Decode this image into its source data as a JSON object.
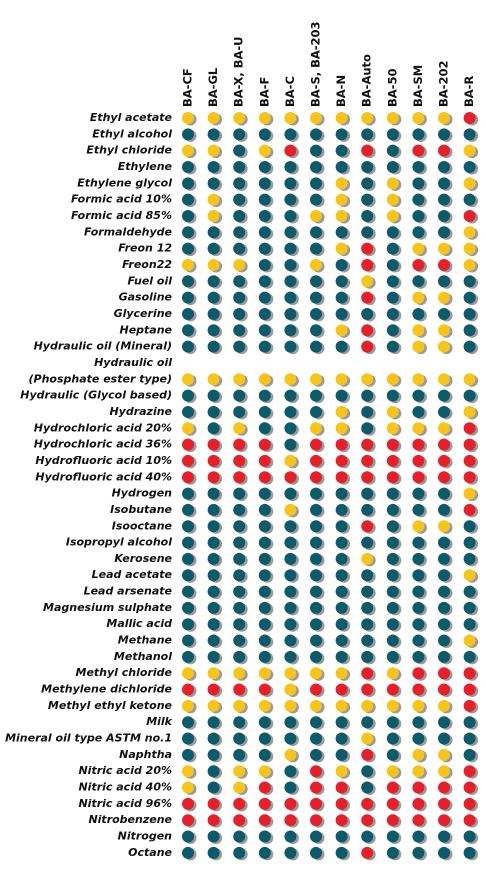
{
  "table": {
    "columns": [
      "BA-CF",
      "BA-GL",
      "BA-X, BA-U",
      "BA-F",
      "BA-C",
      "BA-S, BA-203",
      "BA-N",
      "BA-Auto",
      "BA-50",
      "BA-SM",
      "BA-202",
      "BA-R"
    ],
    "rows": [
      {
        "label": "Ethyl acetate",
        "cells": [
          "#f6c41a",
          "#f6c41a",
          "#f6c41a",
          "#f6c41a",
          "#f6c41a",
          "#f6c41a",
          "#f6c41a",
          "#f6c41a",
          "#f6c41a",
          "#f6c41a",
          "#f6c41a",
          "#e6202a"
        ]
      },
      {
        "label": "Ethyl alcohol",
        "cells": [
          "#0d5a6a",
          "#0d5a6a",
          "#0d5a6a",
          "#0d5a6a",
          "#0d5a6a",
          "#0d5a6a",
          "#0d5a6a",
          "#0d5a6a",
          "#0d5a6a",
          "#0d5a6a",
          "#0d5a6a",
          "#0d5a6a"
        ]
      },
      {
        "label": "Ethyl chloride",
        "cells": [
          "#f6c41a",
          "#f6c41a",
          "#0d5a6a",
          "#f6c41a",
          "#e6202a",
          "#0d5a6a",
          "#0d5a6a",
          "#e6202a",
          "#0d5a6a",
          "#e6202a",
          "#e6202a",
          "#f6c41a"
        ]
      },
      {
        "label": "Ethylene",
        "cells": [
          "#0d5a6a",
          "#0d5a6a",
          "#0d5a6a",
          "#0d5a6a",
          "#0d5a6a",
          "#0d5a6a",
          "#0d5a6a",
          "#0d5a6a",
          "#0d5a6a",
          "#0d5a6a",
          "#0d5a6a",
          "#0d5a6a"
        ]
      },
      {
        "label": "Ethylene glycol",
        "cells": [
          "#0d5a6a",
          "#0d5a6a",
          "#0d5a6a",
          "#0d5a6a",
          "#0d5a6a",
          "#0d5a6a",
          "#f6c41a",
          "#0d5a6a",
          "#f6c41a",
          "#0d5a6a",
          "#0d5a6a",
          "#f6c41a"
        ]
      },
      {
        "label": "Formic acid 10%",
        "cells": [
          "#0d5a6a",
          "#f6c41a",
          "#0d5a6a",
          "#0d5a6a",
          "#0d5a6a",
          "#0d5a6a",
          "#f6c41a",
          "#0d5a6a",
          "#f6c41a",
          "#0d5a6a",
          "#0d5a6a",
          "#0d5a6a"
        ]
      },
      {
        "label": "Formic acid 85%",
        "cells": [
          "#0d5a6a",
          "#f6c41a",
          "#0d5a6a",
          "#0d5a6a",
          "#0d5a6a",
          "#f6c41a",
          "#f6c41a",
          "#0d5a6a",
          "#f6c41a",
          "#0d5a6a",
          "#0d5a6a",
          "#e6202a"
        ]
      },
      {
        "label": "Formaldehyde",
        "cells": [
          "#0d5a6a",
          "#0d5a6a",
          "#0d5a6a",
          "#0d5a6a",
          "#0d5a6a",
          "#0d5a6a",
          "#0d5a6a",
          "#0d5a6a",
          "#0d5a6a",
          "#0d5a6a",
          "#0d5a6a",
          "#f6c41a"
        ]
      },
      {
        "label": "Freon 12",
        "cells": [
          "#0d5a6a",
          "#0d5a6a",
          "#0d5a6a",
          "#0d5a6a",
          "#0d5a6a",
          "#0d5a6a",
          "#f6c41a",
          "#e6202a",
          "#0d5a6a",
          "#f6c41a",
          "#f6c41a",
          "#f6c41a"
        ]
      },
      {
        "label": "Freon22",
        "cells": [
          "#f6c41a",
          "#f6c41a",
          "#f6c41a",
          "#0d5a6a",
          "#0d5a6a",
          "#f6c41a",
          "#0d5a6a",
          "#e6202a",
          "#0d5a6a",
          "#e6202a",
          "#e6202a",
          "#f6c41a"
        ]
      },
      {
        "label": "Fuel oil",
        "cells": [
          "#0d5a6a",
          "#0d5a6a",
          "#0d5a6a",
          "#0d5a6a",
          "#0d5a6a",
          "#0d5a6a",
          "#0d5a6a",
          "#f6c41a",
          "#0d5a6a",
          "#0d5a6a",
          "#0d5a6a",
          "#0d5a6a"
        ]
      },
      {
        "label": "Gasoline",
        "cells": [
          "#0d5a6a",
          "#0d5a6a",
          "#0d5a6a",
          "#0d5a6a",
          "#0d5a6a",
          "#0d5a6a",
          "#0d5a6a",
          "#e6202a",
          "#0d5a6a",
          "#f6c41a",
          "#f6c41a",
          "#0d5a6a"
        ]
      },
      {
        "label": "Glycerine",
        "cells": [
          "#0d5a6a",
          "#0d5a6a",
          "#0d5a6a",
          "#0d5a6a",
          "#0d5a6a",
          "#0d5a6a",
          "#0d5a6a",
          "#0d5a6a",
          "#0d5a6a",
          "#0d5a6a",
          "#0d5a6a",
          "#0d5a6a"
        ]
      },
      {
        "label": "Heptane",
        "cells": [
          "#0d5a6a",
          "#0d5a6a",
          "#0d5a6a",
          "#0d5a6a",
          "#0d5a6a",
          "#0d5a6a",
          "#f6c41a",
          "#e6202a",
          "#0d5a6a",
          "#f6c41a",
          "#f6c41a",
          "#0d5a6a"
        ]
      },
      {
        "label": "Hydraulic oil (Mineral)",
        "cells": [
          "#0d5a6a",
          "#0d5a6a",
          "#0d5a6a",
          "#0d5a6a",
          "#0d5a6a",
          "#0d5a6a",
          "#0d5a6a",
          "#e6202a",
          "#0d5a6a",
          "#f6c41a",
          "#f6c41a",
          "#0d5a6a"
        ]
      },
      {
        "label": "Hydraulic oil",
        "cells": []
      },
      {
        "label": "(Phosphate ester type)",
        "cells": [
          "#f6c41a",
          "#f6c41a",
          "#f6c41a",
          "#f6c41a",
          "#f6c41a",
          "#f6c41a",
          "#f6c41a",
          "#f6c41a",
          "#f6c41a",
          "#f6c41a",
          "#f6c41a",
          "#f6c41a"
        ]
      },
      {
        "label": "Hydraulic (Glycol based)",
        "cells": [
          "#0d5a6a",
          "#0d5a6a",
          "#0d5a6a",
          "#0d5a6a",
          "#0d5a6a",
          "#0d5a6a",
          "#0d5a6a",
          "#0d5a6a",
          "#0d5a6a",
          "#0d5a6a",
          "#0d5a6a",
          "#0d5a6a"
        ]
      },
      {
        "label": "Hydrazine",
        "cells": [
          "#0d5a6a",
          "#0d5a6a",
          "#0d5a6a",
          "#0d5a6a",
          "#0d5a6a",
          "#0d5a6a",
          "#f6c41a",
          "#0d5a6a",
          "#f6c41a",
          "#0d5a6a",
          "#0d5a6a",
          "#f6c41a"
        ]
      },
      {
        "label": "Hydrochloric acid 20%",
        "cells": [
          "#f6c41a",
          "#0d5a6a",
          "#f6c41a",
          "#0d5a6a",
          "#0d5a6a",
          "#f6c41a",
          "#f6c41a",
          "#0d5a6a",
          "#f6c41a",
          "#f6c41a",
          "#f6c41a",
          "#e6202a"
        ]
      },
      {
        "label": "Hydrochloric acid 36%",
        "cells": [
          "#e6202a",
          "#e6202a",
          "#e6202a",
          "#e6202a",
          "#0d5a6a",
          "#e6202a",
          "#e6202a",
          "#e6202a",
          "#e6202a",
          "#e6202a",
          "#e6202a",
          "#e6202a"
        ]
      },
      {
        "label": "Hydrofluoric acid 10%",
        "cells": [
          "#e6202a",
          "#e6202a",
          "#e6202a",
          "#e6202a",
          "#f6c41a",
          "#e6202a",
          "#e6202a",
          "#e6202a",
          "#e6202a",
          "#e6202a",
          "#e6202a",
          "#e6202a"
        ]
      },
      {
        "label": "Hydrofluoric acid 40%",
        "cells": [
          "#e6202a",
          "#e6202a",
          "#e6202a",
          "#e6202a",
          "#e6202a",
          "#e6202a",
          "#e6202a",
          "#e6202a",
          "#e6202a",
          "#e6202a",
          "#e6202a",
          "#e6202a"
        ]
      },
      {
        "label": "Hydrogen",
        "cells": [
          "#0d5a6a",
          "#0d5a6a",
          "#0d5a6a",
          "#0d5a6a",
          "#0d5a6a",
          "#0d5a6a",
          "#0d5a6a",
          "#0d5a6a",
          "#0d5a6a",
          "#0d5a6a",
          "#0d5a6a",
          "#f6c41a"
        ]
      },
      {
        "label": "Isobutane",
        "cells": [
          "#0d5a6a",
          "#0d5a6a",
          "#0d5a6a",
          "#0d5a6a",
          "#f6c41a",
          "#0d5a6a",
          "#0d5a6a",
          "#0d5a6a",
          "#0d5a6a",
          "#0d5a6a",
          "#0d5a6a",
          "#e6202a"
        ]
      },
      {
        "label": "Isooctane",
        "cells": [
          "#0d5a6a",
          "#0d5a6a",
          "#0d5a6a",
          "#0d5a6a",
          "#0d5a6a",
          "#0d5a6a",
          "#0d5a6a",
          "#e6202a",
          "#0d5a6a",
          "#f6c41a",
          "#f6c41a",
          "#0d5a6a"
        ]
      },
      {
        "label": "Isopropyl alcohol",
        "cells": [
          "#0d5a6a",
          "#0d5a6a",
          "#0d5a6a",
          "#0d5a6a",
          "#0d5a6a",
          "#0d5a6a",
          "#0d5a6a",
          "#0d5a6a",
          "#0d5a6a",
          "#0d5a6a",
          "#0d5a6a",
          "#0d5a6a"
        ]
      },
      {
        "label": "Kerosene",
        "cells": [
          "#0d5a6a",
          "#0d5a6a",
          "#0d5a6a",
          "#0d5a6a",
          "#0d5a6a",
          "#0d5a6a",
          "#0d5a6a",
          "#f6c41a",
          "#0d5a6a",
          "#0d5a6a",
          "#0d5a6a",
          "#0d5a6a"
        ]
      },
      {
        "label": "Lead acetate",
        "cells": [
          "#0d5a6a",
          "#0d5a6a",
          "#0d5a6a",
          "#0d5a6a",
          "#0d5a6a",
          "#0d5a6a",
          "#0d5a6a",
          "#0d5a6a",
          "#0d5a6a",
          "#0d5a6a",
          "#0d5a6a",
          "#f6c41a"
        ]
      },
      {
        "label": "Lead arsenate",
        "cells": [
          "#0d5a6a",
          "#0d5a6a",
          "#0d5a6a",
          "#0d5a6a",
          "#0d5a6a",
          "#0d5a6a",
          "#0d5a6a",
          "#0d5a6a",
          "#0d5a6a",
          "#0d5a6a",
          "#0d5a6a",
          "#0d5a6a"
        ]
      },
      {
        "label": "Magnesium sulphate",
        "cells": [
          "#0d5a6a",
          "#0d5a6a",
          "#0d5a6a",
          "#0d5a6a",
          "#0d5a6a",
          "#0d5a6a",
          "#0d5a6a",
          "#0d5a6a",
          "#0d5a6a",
          "#0d5a6a",
          "#0d5a6a",
          "#0d5a6a"
        ]
      },
      {
        "label": "Mallic acid",
        "cells": [
          "#0d5a6a",
          "#0d5a6a",
          "#0d5a6a",
          "#0d5a6a",
          "#0d5a6a",
          "#0d5a6a",
          "#0d5a6a",
          "#0d5a6a",
          "#0d5a6a",
          "#0d5a6a",
          "#0d5a6a",
          "#0d5a6a"
        ]
      },
      {
        "label": "Methane",
        "cells": [
          "#0d5a6a",
          "#0d5a6a",
          "#0d5a6a",
          "#0d5a6a",
          "#0d5a6a",
          "#0d5a6a",
          "#0d5a6a",
          "#0d5a6a",
          "#0d5a6a",
          "#0d5a6a",
          "#0d5a6a",
          "#f6c41a"
        ]
      },
      {
        "label": "Methanol",
        "cells": [
          "#0d5a6a",
          "#0d5a6a",
          "#0d5a6a",
          "#0d5a6a",
          "#0d5a6a",
          "#0d5a6a",
          "#0d5a6a",
          "#0d5a6a",
          "#0d5a6a",
          "#0d5a6a",
          "#0d5a6a",
          "#0d5a6a"
        ]
      },
      {
        "label": "Methyl chloride",
        "cells": [
          "#f6c41a",
          "#f6c41a",
          "#f6c41a",
          "#f6c41a",
          "#f6c41a",
          "#f6c41a",
          "#f6c41a",
          "#e6202a",
          "#f6c41a",
          "#e6202a",
          "#e6202a",
          "#e6202a"
        ]
      },
      {
        "label": "Methylene dichloride",
        "cells": [
          "#e6202a",
          "#e6202a",
          "#e6202a",
          "#e6202a",
          "#f6c41a",
          "#e6202a",
          "#e6202a",
          "#e6202a",
          "#e6202a",
          "#e6202a",
          "#e6202a",
          "#e6202a"
        ]
      },
      {
        "label": "Methyl ethyl ketone",
        "cells": [
          "#f6c41a",
          "#f6c41a",
          "#f6c41a",
          "#f6c41a",
          "#f6c41a",
          "#f6c41a",
          "#f6c41a",
          "#f6c41a",
          "#f6c41a",
          "#f6c41a",
          "#f6c41a",
          "#e6202a"
        ]
      },
      {
        "label": "Milk",
        "cells": [
          "#0d5a6a",
          "#0d5a6a",
          "#0d5a6a",
          "#0d5a6a",
          "#0d5a6a",
          "#0d5a6a",
          "#0d5a6a",
          "#0d5a6a",
          "#0d5a6a",
          "#0d5a6a",
          "#0d5a6a",
          "#0d5a6a"
        ]
      },
      {
        "label": "Mineral oil type ASTM no.1",
        "cells": [
          "#0d5a6a",
          "#0d5a6a",
          "#0d5a6a",
          "#0d5a6a",
          "#0d5a6a",
          "#0d5a6a",
          "#0d5a6a",
          "#f6c41a",
          "#0d5a6a",
          "#0d5a6a",
          "#0d5a6a",
          "#0d5a6a"
        ]
      },
      {
        "label": "Naphtha",
        "cells": [
          "#0d5a6a",
          "#0d5a6a",
          "#0d5a6a",
          "#0d5a6a",
          "#f6c41a",
          "#0d5a6a",
          "#0d5a6a",
          "#e6202a",
          "#0d5a6a",
          "#f6c41a",
          "#f6c41a",
          "#0d5a6a"
        ]
      },
      {
        "label": "Nitric acid 20%",
        "cells": [
          "#f6c41a",
          "#0d5a6a",
          "#f6c41a",
          "#f6c41a",
          "#0d5a6a",
          "#e6202a",
          "#f6c41a",
          "#0d5a6a",
          "#f6c41a",
          "#f6c41a",
          "#f6c41a",
          "#e6202a"
        ]
      },
      {
        "label": "Nitric acid 40%",
        "cells": [
          "#f6c41a",
          "#0d5a6a",
          "#f6c41a",
          "#e6202a",
          "#0d5a6a",
          "#e6202a",
          "#e6202a",
          "#0d5a6a",
          "#e6202a",
          "#e6202a",
          "#e6202a",
          "#e6202a"
        ]
      },
      {
        "label": "Nitric acid 96%",
        "cells": [
          "#e6202a",
          "#e6202a",
          "#e6202a",
          "#e6202a",
          "#e6202a",
          "#e6202a",
          "#e6202a",
          "#e6202a",
          "#e6202a",
          "#e6202a",
          "#e6202a",
          "#e6202a"
        ]
      },
      {
        "label": "Nitrobenzene",
        "cells": [
          "#e6202a",
          "#e6202a",
          "#e6202a",
          "#e6202a",
          "#e6202a",
          "#e6202a",
          "#e6202a",
          "#e6202a",
          "#e6202a",
          "#e6202a",
          "#e6202a",
          "#e6202a"
        ]
      },
      {
        "label": "Nitrogen",
        "cells": [
          "#0d5a6a",
          "#0d5a6a",
          "#0d5a6a",
          "#0d5a6a",
          "#0d5a6a",
          "#0d5a6a",
          "#0d5a6a",
          "#0d5a6a",
          "#0d5a6a",
          "#0d5a6a",
          "#0d5a6a",
          "#0d5a6a"
        ]
      },
      {
        "label": "Octane",
        "cells": [
          "#0d5a6a",
          "#0d5a6a",
          "#0d5a6a",
          "#0d5a6a",
          "#0d5a6a",
          "#0d5a6a",
          "#0d5a6a",
          "#e6202a",
          "#0d5a6a",
          "#0d5a6a",
          "#0d5a6a",
          "#0d5a6a"
        ]
      }
    ]
  }
}
